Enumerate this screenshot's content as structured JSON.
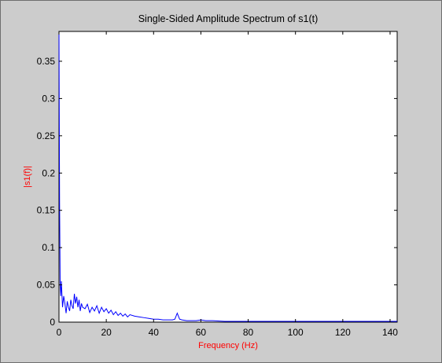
{
  "chart_data": {
    "type": "line",
    "title": "Single-Sided Amplitude Spectrum of s1(t)",
    "xlabel": "Frequency (Hz)",
    "ylabel": "|s1(f)|",
    "xlim": [
      0,
      143
    ],
    "ylim": [
      0,
      0.39
    ],
    "x_ticks": [
      0,
      20,
      40,
      60,
      80,
      100,
      120,
      140
    ],
    "x_tick_labels": [
      "0",
      "20",
      "40",
      "60",
      "80",
      "100",
      "120",
      "140"
    ],
    "y_ticks": [
      0,
      0.05,
      0.1,
      0.15,
      0.2,
      0.25,
      0.3,
      0.35
    ],
    "y_tick_labels": [
      "0",
      "0.05",
      "0.1",
      "0.15",
      "0.2",
      "0.25",
      "0.3",
      "0.35"
    ],
    "grid": false,
    "series": [
      {
        "color": "#0000ff",
        "x": [
          0,
          0.25,
          0.5,
          0.75,
          1,
          1.5,
          2,
          2.5,
          3,
          3.5,
          4,
          4.5,
          5,
          5.5,
          6,
          6.5,
          7,
          7.5,
          8,
          8.5,
          9,
          9.5,
          10,
          11,
          12,
          13,
          14,
          15,
          16,
          17,
          18,
          19,
          20,
          21,
          22,
          23,
          24,
          25,
          26,
          27,
          28,
          29,
          30,
          32,
          34,
          36,
          38,
          40,
          42,
          44,
          46,
          48,
          49,
          50,
          51,
          52,
          54,
          56,
          58,
          60,
          62,
          65,
          70,
          80,
          90,
          100,
          110,
          120,
          130,
          143
        ],
        "y": [
          0.39,
          0.16,
          0.05,
          0.035,
          0.055,
          0.02,
          0.035,
          0.025,
          0.012,
          0.028,
          0.02,
          0.015,
          0.03,
          0.022,
          0.018,
          0.038,
          0.025,
          0.034,
          0.02,
          0.03,
          0.015,
          0.025,
          0.02,
          0.018,
          0.024,
          0.013,
          0.02,
          0.015,
          0.022,
          0.012,
          0.02,
          0.014,
          0.018,
          0.012,
          0.016,
          0.01,
          0.014,
          0.009,
          0.012,
          0.008,
          0.011,
          0.007,
          0.01,
          0.008,
          0.007,
          0.006,
          0.005,
          0.004,
          0.004,
          0.003,
          0.003,
          0.003,
          0.004,
          0.012,
          0.004,
          0.003,
          0.002,
          0.002,
          0.002,
          0.003,
          0.002,
          0.002,
          0.001,
          0.001,
          0.001,
          0.001,
          0.001,
          0.001,
          0.001,
          0.001
        ]
      }
    ]
  }
}
